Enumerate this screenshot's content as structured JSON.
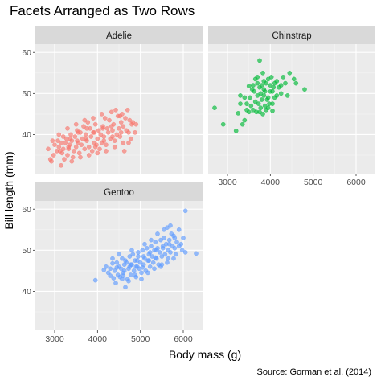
{
  "chart_data": {
    "type": "scatter",
    "title": "Facets Arranged as Two Rows",
    "xlabel": "Body mass (g)",
    "ylabel": "Bill length (mm)",
    "caption": "Source: Gorman et al. (2014)",
    "xlim": [
      2550,
      6450
    ],
    "ylim": [
      30.5,
      62
    ],
    "x_ticks": [
      3000,
      4000,
      5000,
      6000
    ],
    "y_ticks": [
      40,
      50,
      60
    ],
    "grid": true,
    "legend": "none",
    "facet_layout": "two rows",
    "panels": [
      {
        "name": "Adelie",
        "color": "#F8766D",
        "points": [
          [
            2850,
            36.5
          ],
          [
            2900,
            34.0
          ],
          [
            2925,
            33.5
          ],
          [
            2975,
            35.0
          ],
          [
            3000,
            37.5
          ],
          [
            3050,
            36.0
          ],
          [
            3075,
            38.5
          ],
          [
            3100,
            37.0
          ],
          [
            3150,
            32.5
          ],
          [
            3175,
            35.5
          ],
          [
            3200,
            36.5
          ],
          [
            3225,
            34.0
          ],
          [
            3250,
            38.0
          ],
          [
            3275,
            39.0
          ],
          [
            3300,
            35.0
          ],
          [
            3325,
            36.5
          ],
          [
            3350,
            37.5
          ],
          [
            3375,
            40.0
          ],
          [
            3400,
            38.5
          ],
          [
            3425,
            34.5
          ],
          [
            3450,
            36.0
          ],
          [
            3475,
            39.5
          ],
          [
            3500,
            37.0
          ],
          [
            3525,
            41.0
          ],
          [
            3550,
            38.0
          ],
          [
            3575,
            35.5
          ],
          [
            3600,
            40.5
          ],
          [
            3625,
            37.5
          ],
          [
            3650,
            39.0
          ],
          [
            3675,
            42.0
          ],
          [
            3700,
            36.5
          ],
          [
            3725,
            40.0
          ],
          [
            3750,
            38.5
          ],
          [
            3775,
            43.0
          ],
          [
            3800,
            37.0
          ],
          [
            3825,
            41.5
          ],
          [
            3850,
            39.5
          ],
          [
            3875,
            36.0
          ],
          [
            3900,
            40.5
          ],
          [
            3925,
            38.0
          ],
          [
            3950,
            42.5
          ],
          [
            3975,
            37.5
          ],
          [
            4000,
            39.0
          ],
          [
            4025,
            41.0
          ],
          [
            4050,
            36.5
          ],
          [
            4075,
            40.0
          ],
          [
            4100,
            38.0
          ],
          [
            4125,
            42.0
          ],
          [
            4150,
            39.5
          ],
          [
            4175,
            44.0
          ],
          [
            4200,
            37.5
          ],
          [
            4225,
            41.5
          ],
          [
            4250,
            40.5
          ],
          [
            4275,
            43.5
          ],
          [
            4300,
            39.0
          ],
          [
            4325,
            45.5
          ],
          [
            4350,
            41.0
          ],
          [
            4375,
            42.5
          ],
          [
            4400,
            38.5
          ],
          [
            4425,
            46.0
          ],
          [
            4450,
            40.0
          ],
          [
            4475,
            44.5
          ],
          [
            4500,
            41.5
          ],
          [
            4525,
            39.5
          ],
          [
            4550,
            43.0
          ],
          [
            4575,
            45.0
          ],
          [
            4600,
            42.0
          ],
          [
            4625,
            36.0
          ],
          [
            4650,
            44.0
          ],
          [
            4675,
            41.0
          ],
          [
            4700,
            46.0
          ],
          [
            4725,
            40.5
          ],
          [
            4750,
            43.5
          ],
          [
            4775,
            39.0
          ],
          [
            4800,
            42.5
          ],
          [
            3100,
            40.0
          ],
          [
            3300,
            41.5
          ],
          [
            3500,
            42.5
          ],
          [
            3700,
            43.5
          ],
          [
            3900,
            44.0
          ],
          [
            4100,
            45.0
          ],
          [
            3200,
            39.5
          ],
          [
            3400,
            33.5
          ],
          [
            3600,
            34.5
          ],
          [
            3800,
            35.0
          ],
          [
            4000,
            35.5
          ],
          [
            4200,
            36.0
          ],
          [
            4400,
            37.0
          ],
          [
            4600,
            38.0
          ],
          [
            2950,
            38.5
          ],
          [
            3150,
            38.0
          ],
          [
            3350,
            39.0
          ],
          [
            3550,
            40.5
          ],
          [
            3750,
            41.5
          ],
          [
            3950,
            37.0
          ],
          [
            4150,
            38.5
          ],
          [
            4350,
            39.5
          ],
          [
            4550,
            40.5
          ],
          [
            3125,
            36.0
          ],
          [
            3325,
            37.0
          ],
          [
            3525,
            38.5
          ],
          [
            3725,
            39.0
          ],
          [
            3925,
            40.5
          ],
          [
            4125,
            41.5
          ],
          [
            4325,
            42.0
          ],
          [
            4525,
            44.5
          ],
          [
            4725,
            38.0
          ],
          [
            4825,
            43.0
          ],
          [
            4875,
            40.5
          ],
          [
            4900,
            42.5
          ]
        ]
      },
      {
        "name": "Chinstrap",
        "color": "#00BA38",
        "points": [
          [
            2700,
            46.5
          ],
          [
            2900,
            42.5
          ],
          [
            3200,
            40.9
          ],
          [
            3250,
            45.2
          ],
          [
            3300,
            47.5
          ],
          [
            3350,
            42.5
          ],
          [
            3400,
            43.5
          ],
          [
            3450,
            46.0
          ],
          [
            3500,
            45.5
          ],
          [
            3525,
            49.0
          ],
          [
            3550,
            47.0
          ],
          [
            3575,
            51.0
          ],
          [
            3600,
            46.0
          ],
          [
            3625,
            50.5
          ],
          [
            3650,
            48.0
          ],
          [
            3650,
            53.5
          ],
          [
            3675,
            45.5
          ],
          [
            3700,
            49.5
          ],
          [
            3700,
            52.5
          ],
          [
            3725,
            47.5
          ],
          [
            3750,
            51.5
          ],
          [
            3750,
            58.0
          ],
          [
            3775,
            46.5
          ],
          [
            3775,
            50.0
          ],
          [
            3800,
            48.5
          ],
          [
            3800,
            52.0
          ],
          [
            3825,
            45.0
          ],
          [
            3825,
            55.0
          ],
          [
            3850,
            49.5
          ],
          [
            3850,
            51.0
          ],
          [
            3875,
            47.0
          ],
          [
            3875,
            50.5
          ],
          [
            3900,
            52.5
          ],
          [
            3900,
            46.0
          ],
          [
            3925,
            48.5
          ],
          [
            3950,
            53.5
          ],
          [
            3950,
            49.0
          ],
          [
            3975,
            47.5
          ],
          [
            4000,
            50.5
          ],
          [
            4000,
            52.0
          ],
          [
            4025,
            54.0
          ],
          [
            4050,
            50.5
          ],
          [
            4050,
            47.5
          ],
          [
            4075,
            51.5
          ],
          [
            4100,
            52.5
          ],
          [
            4100,
            49.0
          ],
          [
            4150,
            53.0
          ],
          [
            4200,
            51.5
          ],
          [
            4250,
            50.0
          ],
          [
            4300,
            54.0
          ],
          [
            4350,
            52.5
          ],
          [
            4400,
            49.5
          ],
          [
            4450,
            55.0
          ],
          [
            4550,
            53.5
          ],
          [
            4600,
            52.5
          ],
          [
            4800,
            51.0
          ],
          [
            3400,
            49.0
          ],
          [
            3600,
            52.0
          ],
          [
            3750,
            45.5
          ],
          [
            3950,
            46.5
          ],
          [
            4050,
            45.8
          ],
          [
            3300,
            49.5
          ],
          [
            3500,
            51.8
          ],
          [
            3700,
            54.0
          ],
          [
            3850,
            53.0
          ],
          [
            4150,
            49.5
          ],
          [
            4250,
            52.0
          ],
          [
            3450,
            47.5
          ]
        ]
      },
      {
        "name": "Gentoo",
        "color": "#619CFF",
        "points": [
          [
            3950,
            42.7
          ],
          [
            4150,
            45.2
          ],
          [
            4200,
            46.0
          ],
          [
            4250,
            44.5
          ],
          [
            4300,
            45.5
          ],
          [
            4350,
            46.8
          ],
          [
            4375,
            43.2
          ],
          [
            4400,
            45.0
          ],
          [
            4450,
            47.0
          ],
          [
            4475,
            44.0
          ],
          [
            4500,
            46.0
          ],
          [
            4525,
            43.5
          ],
          [
            4550,
            45.5
          ],
          [
            4575,
            48.0
          ],
          [
            4600,
            44.5
          ],
          [
            4625,
            46.5
          ],
          [
            4650,
            41.0
          ],
          [
            4675,
            47.0
          ],
          [
            4700,
            43.0
          ],
          [
            4725,
            45.5
          ],
          [
            4750,
            48.5
          ],
          [
            4775,
            44.0
          ],
          [
            4800,
            46.5
          ],
          [
            4825,
            49.0
          ],
          [
            4850,
            45.0
          ],
          [
            4875,
            47.5
          ],
          [
            4900,
            43.5
          ],
          [
            4925,
            46.0
          ],
          [
            4950,
            49.5
          ],
          [
            4975,
            45.5
          ],
          [
            5000,
            47.0
          ],
          [
            5025,
            44.5
          ],
          [
            5050,
            50.0
          ],
          [
            5075,
            46.5
          ],
          [
            5100,
            48.0
          ],
          [
            5125,
            45.0
          ],
          [
            5150,
            50.5
          ],
          [
            5175,
            47.5
          ],
          [
            5200,
            49.0
          ],
          [
            5225,
            46.0
          ],
          [
            5250,
            51.0
          ],
          [
            5275,
            48.5
          ],
          [
            5300,
            47.0
          ],
          [
            5325,
            50.0
          ],
          [
            5350,
            52.0
          ],
          [
            5375,
            48.0
          ],
          [
            5400,
            50.5
          ],
          [
            5425,
            46.5
          ],
          [
            5450,
            49.5
          ],
          [
            5475,
            52.5
          ],
          [
            5500,
            48.5
          ],
          [
            5525,
            51.0
          ],
          [
            5550,
            53.0
          ],
          [
            5575,
            49.0
          ],
          [
            5600,
            51.5
          ],
          [
            5625,
            55.5
          ],
          [
            5650,
            50.0
          ],
          [
            5675,
            52.5
          ],
          [
            5700,
            49.5
          ],
          [
            5725,
            54.0
          ],
          [
            5750,
            51.0
          ],
          [
            5775,
            53.5
          ],
          [
            5800,
            50.5
          ],
          [
            5850,
            52.0
          ],
          [
            5900,
            55.0
          ],
          [
            5950,
            51.5
          ],
          [
            6000,
            53.0
          ],
          [
            6050,
            49.5
          ],
          [
            6300,
            49.2
          ],
          [
            6050,
            59.6
          ],
          [
            4425,
            42.0
          ],
          [
            4575,
            43.0
          ],
          [
            4725,
            42.5
          ],
          [
            4875,
            44.0
          ],
          [
            5025,
            43.0
          ],
          [
            5175,
            44.5
          ],
          [
            5325,
            45.5
          ],
          [
            5475,
            46.0
          ],
          [
            5625,
            47.0
          ],
          [
            5775,
            48.0
          ],
          [
            4350,
            48.0
          ],
          [
            4500,
            49.0
          ],
          [
            4650,
            47.5
          ],
          [
            4800,
            50.0
          ],
          [
            4950,
            48.5
          ],
          [
            5100,
            51.5
          ],
          [
            5250,
            52.5
          ],
          [
            5400,
            54.0
          ],
          [
            5550,
            55.0
          ],
          [
            5700,
            56.0
          ],
          [
            4625,
            45.0
          ],
          [
            4775,
            46.5
          ],
          [
            4925,
            47.5
          ],
          [
            5075,
            48.5
          ],
          [
            5225,
            49.5
          ],
          [
            5375,
            50.0
          ],
          [
            5525,
            50.5
          ],
          [
            5675,
            51.5
          ],
          [
            5825,
            49.0
          ],
          [
            5975,
            50.0
          ],
          [
            4300,
            43.8
          ],
          [
            4450,
            45.8
          ],
          [
            4600,
            43.8
          ],
          [
            4750,
            46.0
          ],
          [
            4900,
            46.0
          ],
          [
            5050,
            45.8
          ],
          [
            5200,
            47.5
          ],
          [
            5350,
            48.2
          ],
          [
            5500,
            46.5
          ],
          [
            5650,
            48.0
          ],
          [
            5800,
            53.0
          ],
          [
            5900,
            51.0
          ]
        ]
      }
    ]
  }
}
